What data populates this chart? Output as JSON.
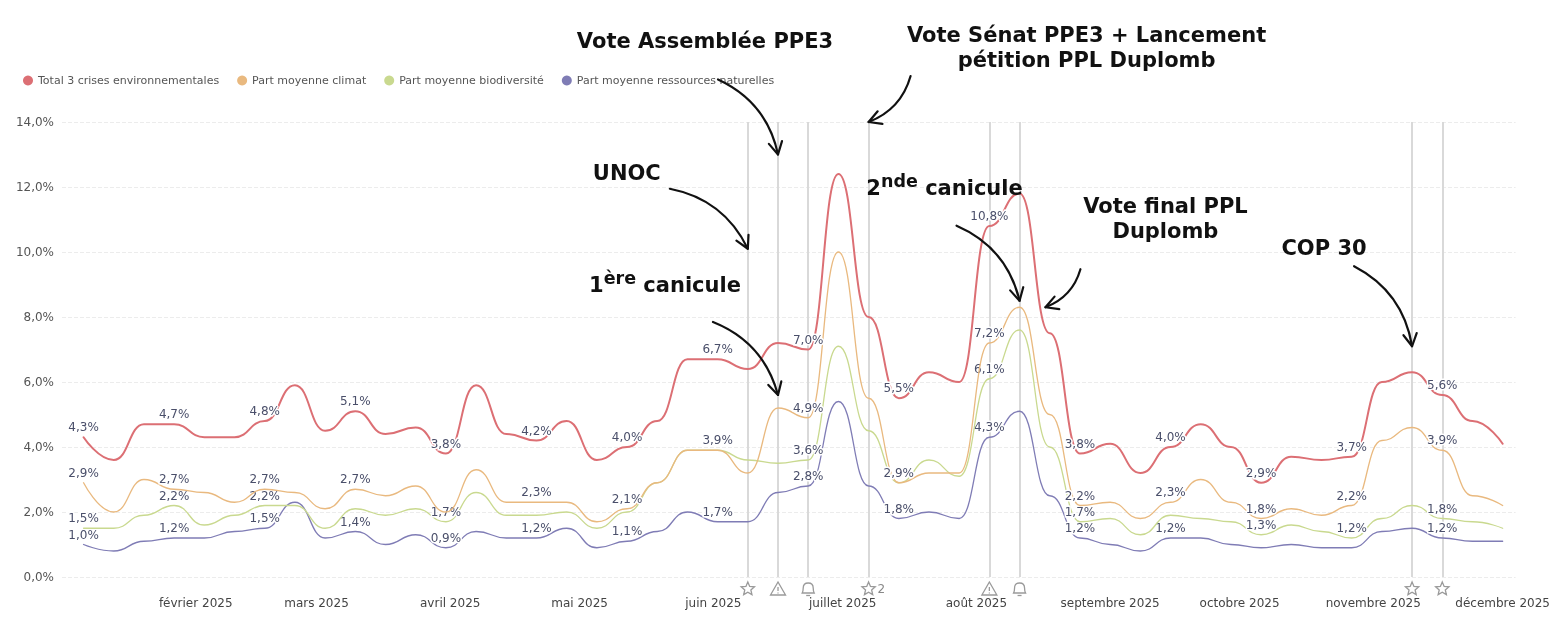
{
  "chart_data": {
    "type": "line",
    "legend": "top left",
    "grid": "y",
    "marker": "none",
    "line_style": "solid",
    "x": [
      "2025-01-06",
      "2025-01-13",
      "2025-01-20",
      "2025-01-27",
      "2025-02-03",
      "2025-02-10",
      "2025-02-17",
      "2025-02-24",
      "2025-03-03",
      "2025-03-10",
      "2025-03-17",
      "2025-03-24",
      "2025-03-31",
      "2025-04-07",
      "2025-04-14",
      "2025-04-21",
      "2025-04-28",
      "2025-05-05",
      "2025-05-12",
      "2025-05-19",
      "2025-05-26",
      "2025-06-02",
      "2025-06-09",
      "2025-06-16",
      "2025-06-23",
      "2025-06-30",
      "2025-07-07",
      "2025-07-14",
      "2025-07-21",
      "2025-07-28",
      "2025-08-04",
      "2025-08-11",
      "2025-08-18",
      "2025-08-25",
      "2025-09-01",
      "2025-09-08",
      "2025-09-15",
      "2025-09-22",
      "2025-09-29",
      "2025-10-06",
      "2025-10-13",
      "2025-10-20",
      "2025-10-27",
      "2025-11-03",
      "2025-11-10",
      "2025-11-17",
      "2025-11-24",
      "2025-12-01"
    ],
    "xlim": [
      "2025-01-01",
      "2025-12-04"
    ],
    "xticks": [
      {
        "value": "2025-02-01",
        "label": "février 2025"
      },
      {
        "value": "2025-03-01",
        "label": "mars 2025"
      },
      {
        "value": "2025-04-01",
        "label": "avril 2025"
      },
      {
        "value": "2025-05-01",
        "label": "mai 2025"
      },
      {
        "value": "2025-06-01",
        "label": "juin 2025"
      },
      {
        "value": "2025-07-01",
        "label": "juillet 2025"
      },
      {
        "value": "2025-08-01",
        "label": "août 2025"
      },
      {
        "value": "2025-09-01",
        "label": "septembre 2025"
      },
      {
        "value": "2025-10-01",
        "label": "octobre 2025"
      },
      {
        "value": "2025-11-01",
        "label": "novembre 2025"
      },
      {
        "value": "2025-12-01",
        "label": "décembre 2025"
      }
    ],
    "ylim": [
      0,
      14
    ],
    "yticks": [
      {
        "value": 0,
        "label": "0,0%"
      },
      {
        "value": 2,
        "label": "2,0%"
      },
      {
        "value": 4,
        "label": "4,0%"
      },
      {
        "value": 6,
        "label": "6,0%"
      },
      {
        "value": 8,
        "label": "8,0%"
      },
      {
        "value": 10,
        "label": "10,0%"
      },
      {
        "value": 12,
        "label": "12,0%"
      },
      {
        "value": 14,
        "label": "14,0%"
      }
    ],
    "series": [
      {
        "name": "Total 3 crises environnementales",
        "color": "#dc6f74",
        "values": [
          4.3,
          3.6,
          4.7,
          4.7,
          4.3,
          4.3,
          4.8,
          5.9,
          4.5,
          5.1,
          4.4,
          4.6,
          3.8,
          5.9,
          4.4,
          4.2,
          4.8,
          3.6,
          4.0,
          4.8,
          6.7,
          6.7,
          6.4,
          7.2,
          7.0,
          12.4,
          8.0,
          5.5,
          6.3,
          6.0,
          10.8,
          11.8,
          7.5,
          3.8,
          4.1,
          3.2,
          4.0,
          4.7,
          4.0,
          2.9,
          3.7,
          3.6,
          3.7,
          6.0,
          6.3,
          5.6,
          4.8,
          4.1
        ],
        "value_labels": [
          "4,3%",
          null,
          null,
          "4,7%",
          null,
          null,
          "4,8%",
          null,
          null,
          "5,1%",
          null,
          null,
          "3,8%",
          null,
          null,
          "4,2%",
          null,
          null,
          "4,0%",
          null,
          null,
          "6,7%",
          null,
          null,
          "7,0%",
          null,
          null,
          "5,5%",
          null,
          null,
          "10,8%",
          null,
          null,
          "3,8%",
          null,
          null,
          "4,0%",
          null,
          null,
          "2,9%",
          null,
          null,
          "3,7%",
          null,
          null,
          "5,6%",
          null,
          null
        ]
      },
      {
        "name": "Part moyenne climat",
        "color": "#e9b97f",
        "values": [
          2.9,
          2.0,
          3.0,
          2.7,
          2.6,
          2.3,
          2.7,
          2.6,
          2.1,
          2.7,
          2.5,
          2.8,
          2.0,
          3.3,
          2.3,
          2.3,
          2.3,
          1.7,
          2.1,
          2.9,
          3.9,
          3.9,
          3.2,
          5.2,
          4.9,
          10.0,
          5.5,
          2.9,
          3.2,
          3.2,
          7.2,
          8.3,
          5.0,
          2.2,
          2.3,
          1.8,
          2.3,
          3.0,
          2.3,
          1.8,
          2.1,
          1.9,
          2.2,
          4.2,
          4.6,
          3.9,
          2.5,
          2.2
        ],
        "value_labels": [
          "2,9%",
          null,
          null,
          "2,7%",
          null,
          null,
          "2,7%",
          null,
          null,
          "2,7%",
          null,
          null,
          null,
          null,
          null,
          "2,3%",
          null,
          null,
          "2,1%",
          null,
          null,
          "3,9%",
          null,
          null,
          "4,9%",
          null,
          null,
          "2,9%",
          null,
          null,
          "7,2%",
          null,
          null,
          "2,2%",
          null,
          null,
          "2,3%",
          null,
          null,
          "1,8%",
          null,
          null,
          "2,2%",
          null,
          null,
          "3,9%",
          null,
          null
        ]
      },
      {
        "name": "Part moyenne biodiversité",
        "color": "#c9d98f",
        "values": [
          1.5,
          1.5,
          1.9,
          2.2,
          1.6,
          1.9,
          2.2,
          2.2,
          1.5,
          2.1,
          1.9,
          2.1,
          1.7,
          2.6,
          1.9,
          1.9,
          2.0,
          1.5,
          2.0,
          2.9,
          3.9,
          3.9,
          3.6,
          3.5,
          3.6,
          7.1,
          4.5,
          2.9,
          3.6,
          3.1,
          6.1,
          7.6,
          4.0,
          1.7,
          1.8,
          1.3,
          1.9,
          1.8,
          1.7,
          1.3,
          1.6,
          1.4,
          1.2,
          1.8,
          2.2,
          1.8,
          1.7,
          1.5
        ],
        "value_labels": [
          "1,5%",
          null,
          null,
          "2,2%",
          null,
          null,
          "2,2%",
          null,
          null,
          null,
          null,
          null,
          "1,7%",
          null,
          null,
          null,
          null,
          null,
          null,
          null,
          null,
          null,
          null,
          null,
          "3,6%",
          null,
          null,
          null,
          null,
          null,
          "6,1%",
          null,
          null,
          "1,7%",
          null,
          null,
          null,
          null,
          null,
          "1,3%",
          null,
          null,
          "1,2%",
          null,
          null,
          "1,8%",
          null,
          null
        ]
      },
      {
        "name": "Part moyenne ressources naturelles",
        "color": "#7f7cb5",
        "values": [
          1.0,
          0.8,
          1.1,
          1.2,
          1.2,
          1.4,
          1.5,
          2.3,
          1.2,
          1.4,
          1.0,
          1.3,
          0.9,
          1.4,
          1.2,
          1.2,
          1.5,
          0.9,
          1.1,
          1.4,
          2.0,
          1.7,
          1.7,
          2.6,
          2.8,
          5.4,
          2.8,
          1.8,
          2.0,
          1.8,
          4.3,
          5.1,
          2.5,
          1.2,
          1.0,
          0.8,
          1.2,
          1.2,
          1.0,
          0.9,
          1.0,
          0.9,
          0.9,
          1.4,
          1.5,
          1.2,
          1.1,
          1.1
        ],
        "value_labels": [
          "1,0%",
          null,
          null,
          "1,2%",
          null,
          null,
          "1,5%",
          null,
          null,
          "1,4%",
          null,
          null,
          "0,9%",
          null,
          null,
          "1,2%",
          null,
          null,
          "1,1%",
          null,
          null,
          "1,7%",
          null,
          null,
          "2,8%",
          null,
          null,
          "1,8%",
          null,
          null,
          "4,3%",
          null,
          null,
          "1,2%",
          null,
          null,
          "1,2%",
          null,
          null,
          null,
          null,
          null,
          null,
          null,
          null,
          "1,2%",
          null,
          null
        ]
      }
    ],
    "ref_lines": [
      {
        "axis": "x",
        "value": "2025-06-09",
        "label": null,
        "color": "#d9d9d9"
      },
      {
        "axis": "x",
        "value": "2025-06-16",
        "label": null,
        "color": "#d9d9d9"
      },
      {
        "axis": "x",
        "value": "2025-06-23",
        "label": null,
        "color": "#d9d9d9"
      },
      {
        "axis": "x",
        "value": "2025-07-07",
        "label": "2",
        "color": "#d9d9d9"
      },
      {
        "axis": "x",
        "value": "2025-08-04",
        "label": null,
        "color": "#d9d9d9"
      },
      {
        "axis": "x",
        "value": "2025-08-11",
        "label": null,
        "color": "#d9d9d9"
      },
      {
        "axis": "x",
        "value": "2025-11-10",
        "label": null,
        "color": "#d9d9d9"
      },
      {
        "axis": "x",
        "value": "2025-11-17",
        "label": null,
        "color": "#d9d9d9"
      }
    ],
    "annotations": [
      {
        "text": "UNOC",
        "x": "2025-06-09",
        "y": 10.1
      },
      {
        "text": "1$^{ère}$ canicule",
        "x": "2025-06-16",
        "y": 5.6
      },
      {
        "text": "Vote Assemblée PPE3",
        "x": "2025-06-16",
        "y": 13.0
      },
      {
        "text": "Vote Sénat PPE3 + Lancement pétition PPL Duplomb",
        "x": "2025-07-07",
        "y": 14.0
      },
      {
        "text": "2$^{nde}$ canicule",
        "x": "2025-08-11",
        "y": 8.5
      },
      {
        "text": "Vote final PPL Duplomb",
        "x": "2025-08-17",
        "y": 8.3
      },
      {
        "text": "COP 30",
        "x": "2025-11-10",
        "y": 7.1
      }
    ]
  }
}
